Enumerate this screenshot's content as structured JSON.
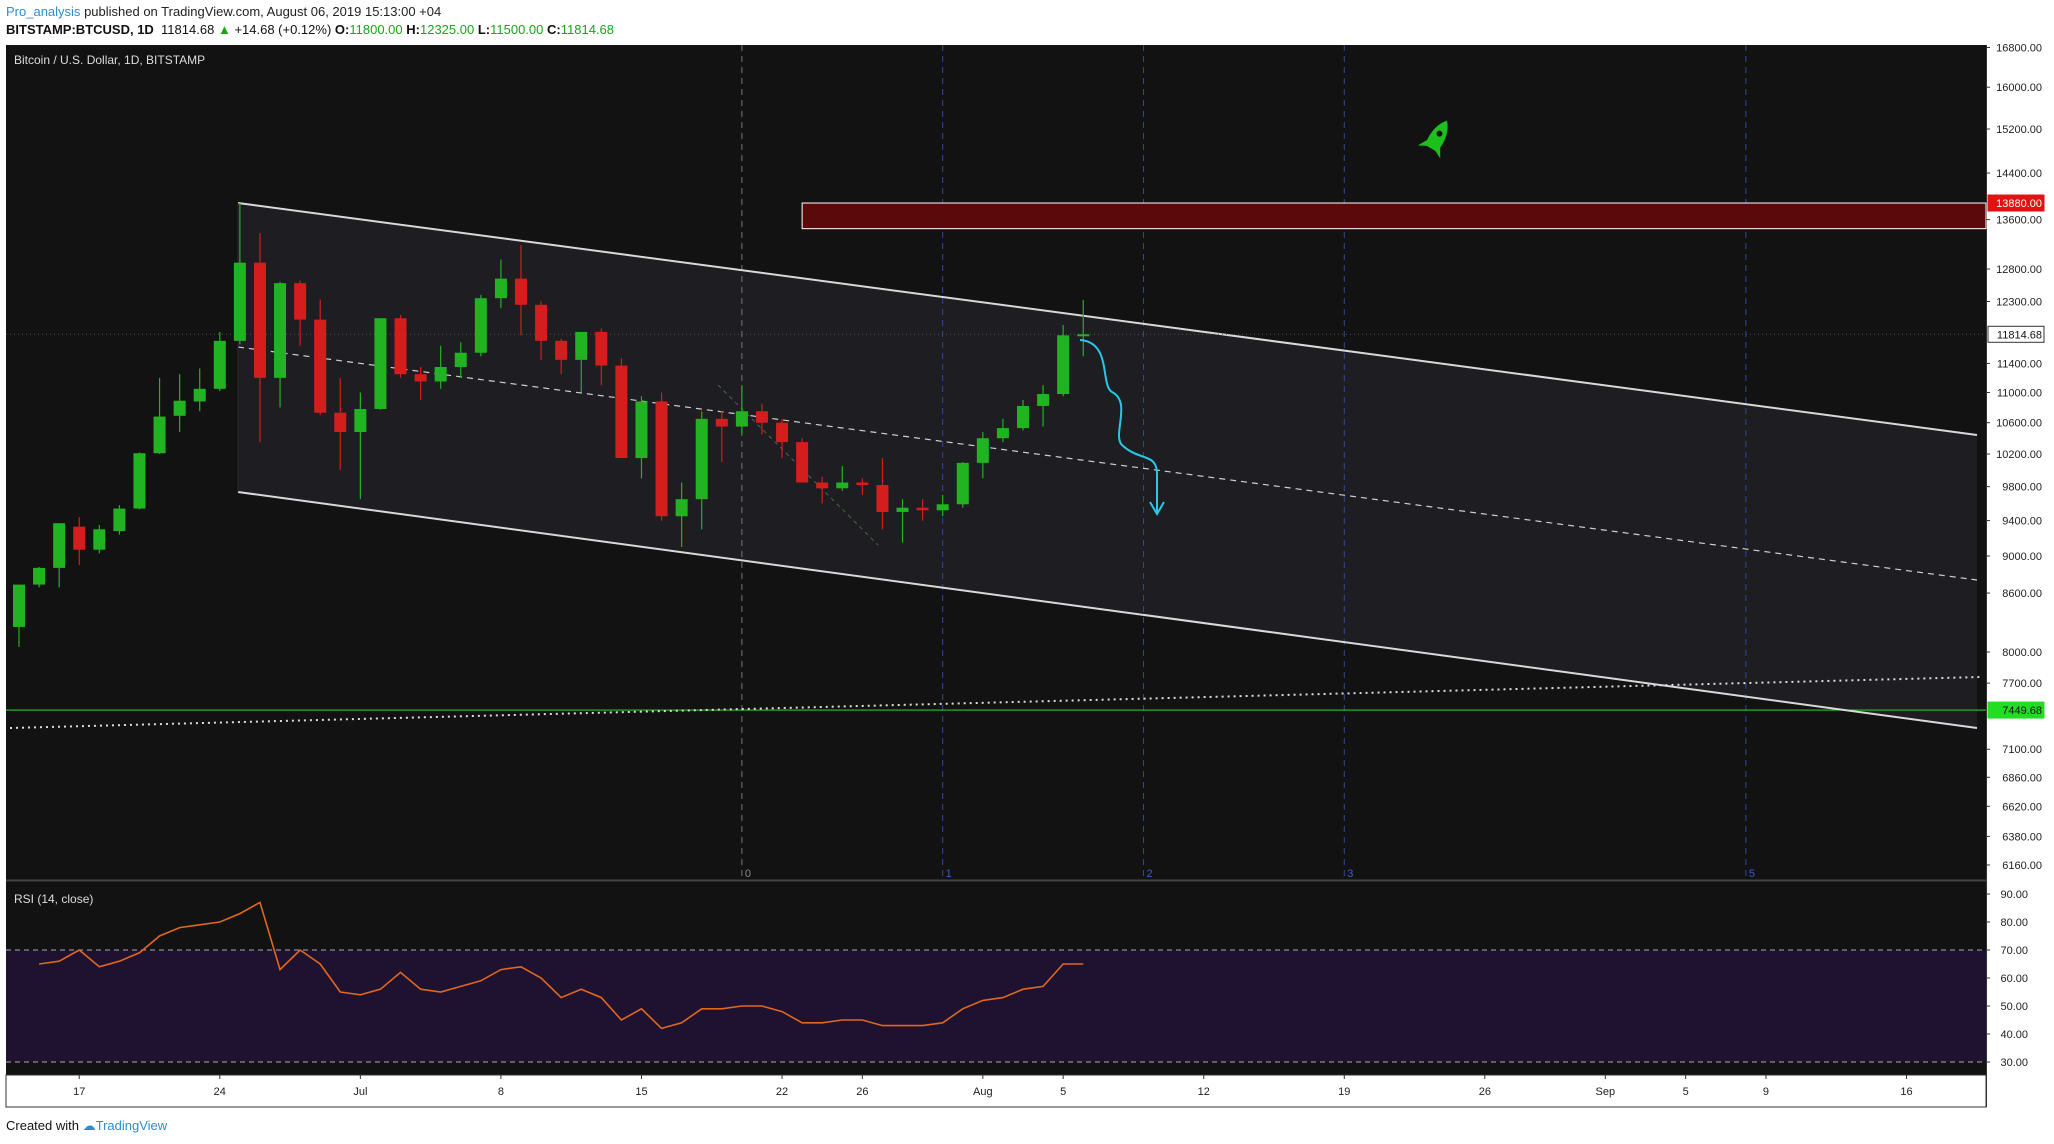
{
  "header": {
    "author": "Pro_analysis",
    "published_text": "published on TradingView.com, August 06, 2019 15:13:00 +04",
    "symbol": "BITSTAMP:BTCUSD, 1D",
    "last": "11814.68",
    "change": "+14.68 (+0.12%)",
    "o_label": "O:",
    "o_value": "11800.00",
    "h_label": "H:",
    "h_value": "12325.00",
    "l_label": "L:",
    "l_value": "11500.00",
    "c_label": "C:",
    "c_value": "11814.68"
  },
  "footer": {
    "created_with": "Created with",
    "brand": "TradingView"
  },
  "colors": {
    "bull": "#22b322",
    "bear": "#d41e1e",
    "background": "#121212",
    "channel_line": "#d9d9d9",
    "resistance_zone": "#5a0a0a",
    "resistance_border": "#ffffff",
    "support_line": "#26c226",
    "fib_line": "#2c4a9c",
    "projection_arrow": "#28c8e8",
    "rsi_line": "#e0671c",
    "rsi_band": "#1e1230"
  },
  "chart_data": [
    {
      "type": "candlestick",
      "title": "Bitcoin / U.S. Dollar, 1D, BITSTAMP",
      "y_scale": "log",
      "ylim": [
        6000,
        17000
      ],
      "y_ticks": [
        16800,
        16000,
        15200,
        14400,
        13600,
        12800,
        12300,
        11400,
        11000,
        10600,
        10200,
        9800,
        9400,
        9000,
        8600,
        8000,
        7700,
        7100,
        6860,
        6620,
        6380,
        6160
      ],
      "x_tick_labels": [
        "17",
        "24",
        "Jul",
        "8",
        "15",
        "22",
        "26",
        "Aug",
        "5",
        "12",
        "19",
        "26",
        "Sep",
        "5",
        "9",
        "16"
      ],
      "x_tick_dates": [
        "2019-06-17",
        "2019-06-24",
        "2019-07-01",
        "2019-07-08",
        "2019-07-15",
        "2019-07-22",
        "2019-07-26",
        "2019-08-01",
        "2019-08-05",
        "2019-08-12",
        "2019-08-19",
        "2019-08-26",
        "2019-09-01",
        "2019-09-05",
        "2019-09-09",
        "2019-09-16"
      ],
      "candles": [
        {
          "date": "2019-06-14",
          "o": 8250,
          "h": 8670,
          "l": 8050,
          "c": 8690
        },
        {
          "date": "2019-06-15",
          "o": 8690,
          "h": 8880,
          "l": 8660,
          "c": 8870
        },
        {
          "date": "2019-06-16",
          "o": 8870,
          "h": 9350,
          "l": 8660,
          "c": 9370
        },
        {
          "date": "2019-06-17",
          "o": 9330,
          "h": 9440,
          "l": 8900,
          "c": 9070
        },
        {
          "date": "2019-06-18",
          "o": 9070,
          "h": 9350,
          "l": 9030,
          "c": 9300
        },
        {
          "date": "2019-06-19",
          "o": 9280,
          "h": 9580,
          "l": 9240,
          "c": 9540
        },
        {
          "date": "2019-06-20",
          "o": 9540,
          "h": 10220,
          "l": 9530,
          "c": 10210
        },
        {
          "date": "2019-06-21",
          "o": 10210,
          "h": 11200,
          "l": 10200,
          "c": 10680
        },
        {
          "date": "2019-06-22",
          "o": 10690,
          "h": 11250,
          "l": 10480,
          "c": 10890
        },
        {
          "date": "2019-06-23",
          "o": 10880,
          "h": 11330,
          "l": 10750,
          "c": 11050
        },
        {
          "date": "2019-06-24",
          "o": 11050,
          "h": 11850,
          "l": 11020,
          "c": 11720
        },
        {
          "date": "2019-06-25",
          "o": 11720,
          "h": 13880,
          "l": 11670,
          "c": 12900
        },
        {
          "date": "2019-06-26",
          "o": 12900,
          "h": 13380,
          "l": 10350,
          "c": 11200
        },
        {
          "date": "2019-06-27",
          "o": 11200,
          "h": 12600,
          "l": 10800,
          "c": 12580
        },
        {
          "date": "2019-06-28",
          "o": 12580,
          "h": 12620,
          "l": 11650,
          "c": 12030
        },
        {
          "date": "2019-06-29",
          "o": 12030,
          "h": 12330,
          "l": 10700,
          "c": 10730
        },
        {
          "date": "2019-06-30",
          "o": 10730,
          "h": 11200,
          "l": 10000,
          "c": 10480
        },
        {
          "date": "2019-07-01",
          "o": 10480,
          "h": 11000,
          "l": 9650,
          "c": 10780
        },
        {
          "date": "2019-07-02",
          "o": 10780,
          "h": 12050,
          "l": 10770,
          "c": 12050
        },
        {
          "date": "2019-07-03",
          "o": 12050,
          "h": 12100,
          "l": 11200,
          "c": 11250
        },
        {
          "date": "2019-07-04",
          "o": 11250,
          "h": 11350,
          "l": 10900,
          "c": 11150
        },
        {
          "date": "2019-07-05",
          "o": 11150,
          "h": 11650,
          "l": 11050,
          "c": 11350
        },
        {
          "date": "2019-07-06",
          "o": 11350,
          "h": 11700,
          "l": 11200,
          "c": 11550
        },
        {
          "date": "2019-07-07",
          "o": 11550,
          "h": 12400,
          "l": 11500,
          "c": 12350
        },
        {
          "date": "2019-07-08",
          "o": 12350,
          "h": 12950,
          "l": 12200,
          "c": 12650
        },
        {
          "date": "2019-07-09",
          "o": 12650,
          "h": 13180,
          "l": 11800,
          "c": 12250
        },
        {
          "date": "2019-07-10",
          "o": 12250,
          "h": 12300,
          "l": 11450,
          "c": 11720
        },
        {
          "date": "2019-07-11",
          "o": 11720,
          "h": 11750,
          "l": 11250,
          "c": 11450
        },
        {
          "date": "2019-07-12",
          "o": 11450,
          "h": 11850,
          "l": 11000,
          "c": 11850
        },
        {
          "date": "2019-07-13",
          "o": 11850,
          "h": 11900,
          "l": 11100,
          "c": 11370
        },
        {
          "date": "2019-07-14",
          "o": 11370,
          "h": 11470,
          "l": 10150,
          "c": 10150
        },
        {
          "date": "2019-07-15",
          "o": 10150,
          "h": 10950,
          "l": 9900,
          "c": 10880
        },
        {
          "date": "2019-07-16",
          "o": 10880,
          "h": 11000,
          "l": 9400,
          "c": 9450
        },
        {
          "date": "2019-07-17",
          "o": 9450,
          "h": 9850,
          "l": 9100,
          "c": 9650
        },
        {
          "date": "2019-07-18",
          "o": 9650,
          "h": 10750,
          "l": 9300,
          "c": 10650
        },
        {
          "date": "2019-07-19",
          "o": 10650,
          "h": 10750,
          "l": 10100,
          "c": 10550
        },
        {
          "date": "2019-07-20",
          "o": 10550,
          "h": 11100,
          "l": 10450,
          "c": 10750
        },
        {
          "date": "2019-07-21",
          "o": 10750,
          "h": 10850,
          "l": 10450,
          "c": 10600
        },
        {
          "date": "2019-07-22",
          "o": 10600,
          "h": 10650,
          "l": 10150,
          "c": 10350
        },
        {
          "date": "2019-07-23",
          "o": 10350,
          "h": 10400,
          "l": 9850,
          "c": 9850
        },
        {
          "date": "2019-07-24",
          "o": 9850,
          "h": 9920,
          "l": 9600,
          "c": 9780
        },
        {
          "date": "2019-07-25",
          "o": 9780,
          "h": 10050,
          "l": 9750,
          "c": 9850
        },
        {
          "date": "2019-07-26",
          "o": 9850,
          "h": 9900,
          "l": 9700,
          "c": 9820
        },
        {
          "date": "2019-07-27",
          "o": 9820,
          "h": 10150,
          "l": 9300,
          "c": 9500
        },
        {
          "date": "2019-07-28",
          "o": 9500,
          "h": 9650,
          "l": 9150,
          "c": 9550
        },
        {
          "date": "2019-07-29",
          "o": 9550,
          "h": 9650,
          "l": 9400,
          "c": 9520
        },
        {
          "date": "2019-07-30",
          "o": 9520,
          "h": 9700,
          "l": 9450,
          "c": 9590
        },
        {
          "date": "2019-07-31",
          "o": 9590,
          "h": 10100,
          "l": 9550,
          "c": 10090
        },
        {
          "date": "2019-08-01",
          "o": 10090,
          "h": 10480,
          "l": 9900,
          "c": 10400
        },
        {
          "date": "2019-08-02",
          "o": 10400,
          "h": 10650,
          "l": 10350,
          "c": 10530
        },
        {
          "date": "2019-08-03",
          "o": 10530,
          "h": 10900,
          "l": 10500,
          "c": 10820
        },
        {
          "date": "2019-08-04",
          "o": 10820,
          "h": 11100,
          "l": 10550,
          "c": 10980
        },
        {
          "date": "2019-08-05",
          "o": 10980,
          "h": 11950,
          "l": 10950,
          "c": 11800
        },
        {
          "date": "2019-08-06",
          "o": 11800,
          "h": 12325,
          "l": 11500,
          "c": 11815
        }
      ],
      "price_labels": [
        {
          "value": 13880,
          "text": "13880.00",
          "role": "resistance"
        },
        {
          "value": 11814.68,
          "text": "11814.68",
          "role": "last"
        },
        {
          "value": 7449.68,
          "text": "7449.68",
          "role": "support"
        }
      ],
      "resistance_zone": {
        "from": 13450,
        "to": 13880,
        "start_date": "2019-07-23"
      },
      "support_level": 7449.68,
      "fib_time_labels": [
        "0",
        "1",
        "2",
        "3",
        "5"
      ],
      "fib_time_dates": [
        "2019-07-20",
        "2019-07-30",
        "2019-08-09",
        "2019-08-19",
        "2019-09-08"
      ]
    },
    {
      "type": "line",
      "title": "RSI (14, close)",
      "ylim": [
        25,
        93
      ],
      "y_ticks": [
        90,
        80,
        70,
        60,
        50,
        40,
        30
      ],
      "bands": [
        70,
        30
      ],
      "series": [
        {
          "values": [
            65,
            66,
            70,
            64,
            66,
            69,
            75,
            78,
            79,
            80,
            83,
            87,
            63,
            70,
            65,
            55,
            54,
            56,
            62,
            56,
            55,
            57,
            59,
            63,
            64,
            60,
            53,
            56,
            53,
            45,
            49,
            42,
            44,
            49,
            49,
            50,
            50,
            48,
            44,
            44,
            45,
            45,
            43,
            43,
            43,
            44,
            49,
            52,
            53,
            56,
            57,
            65,
            65
          ]
        }
      ]
    }
  ]
}
